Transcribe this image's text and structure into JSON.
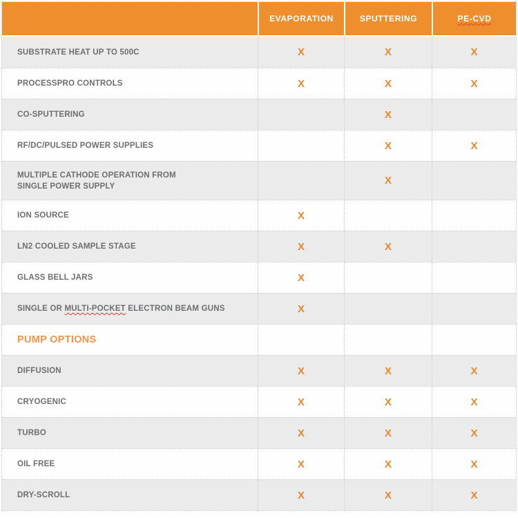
{
  "header": {
    "columns": [
      "EVAPORATION",
      "SPUTTERING",
      "PE-CVD"
    ]
  },
  "rows": [
    {
      "label": "SUBSTRATE HEAT UP TO 500C",
      "marks": [
        "X",
        "X",
        "X"
      ]
    },
    {
      "label": "PROCESSPRO CONTROLS",
      "marks": [
        "X",
        "X",
        "X"
      ]
    },
    {
      "label": "CO-SPUTTERING",
      "marks": [
        "",
        "X",
        ""
      ]
    },
    {
      "label": "RF/DC/PULSED POWER SUPPLIES",
      "marks": [
        "",
        "X",
        "X"
      ]
    },
    {
      "line1": "MULTIPLE CATHODE OPERATION FROM",
      "line2": "SINGLE POWER SUPPLY",
      "marks": [
        "",
        "X",
        ""
      ]
    },
    {
      "label": "ION SOURCE",
      "marks": [
        "X",
        "",
        ""
      ]
    },
    {
      "label": "LN2 COOLED SAMPLE STAGE",
      "marks": [
        "X",
        "X",
        ""
      ]
    },
    {
      "label": "GLASS BELL JARS",
      "marks": [
        "X",
        "",
        ""
      ]
    },
    {
      "pre": "SINGLE OR ",
      "misspelled": "MULTI-POCKET",
      "post": " ELECTRON BEAM GUNS",
      "marks": [
        "X",
        "",
        ""
      ]
    },
    {
      "section": "PUMP OPTIONS",
      "marks": [
        "",
        "",
        ""
      ]
    },
    {
      "label": "DIFFUSION",
      "marks": [
        "X",
        "X",
        "X"
      ]
    },
    {
      "label": "CRYOGENIC",
      "marks": [
        "X",
        "X",
        "X"
      ]
    },
    {
      "label": "TURBO",
      "marks": [
        "X",
        "X",
        "X"
      ]
    },
    {
      "label": "OIL FREE",
      "marks": [
        "X",
        "X",
        "X"
      ]
    },
    {
      "label": "DRY-SCROLL",
      "marks": [
        "X",
        "X",
        "X"
      ]
    }
  ],
  "colors": {
    "header_bg": "#EF8E2C",
    "header_text": "#FFFFFF",
    "mark": "#E8872D",
    "section_text": "#F0954A",
    "label_text": "#6D6E70",
    "row_alt_bg": "#EBEBEB",
    "squiggle": "#E03A2A"
  },
  "mark_glyph": "X"
}
